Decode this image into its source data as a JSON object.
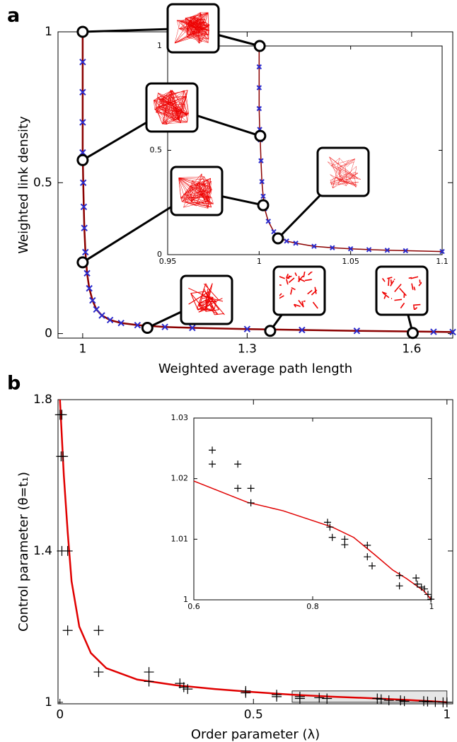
{
  "chart_data": [
    {
      "type": "line",
      "panel_label": "a",
      "xlabel": "Weighted average path length",
      "ylabel": "Weighted link density",
      "xlim": [
        0.955,
        1.675
      ],
      "ylim": [
        -0.015,
        1.0
      ],
      "xticks": [
        1,
        1.3,
        1.6
      ],
      "yticks": [
        0,
        0.5,
        1
      ],
      "series": [
        {
          "color": "#8b0000",
          "marker": "x",
          "marker_color": "#2a2acc",
          "x": [
            1,
            1,
            1,
            1,
            1,
            1.001,
            1.002,
            1.003,
            1.005,
            1.008,
            1.012,
            1.018,
            1.025,
            1.035,
            1.05,
            1.07,
            1.1,
            1.15,
            1.2,
            1.3,
            1.4,
            1.5,
            1.6,
            1.64,
            1.675
          ],
          "values": [
            1,
            0.9,
            0.8,
            0.7,
            0.6,
            0.5,
            0.42,
            0.35,
            0.27,
            0.2,
            0.15,
            0.11,
            0.08,
            0.06,
            0.045,
            0.035,
            0.028,
            0.022,
            0.019,
            0.015,
            0.012,
            0.009,
            0.007,
            0.006,
            0.005
          ]
        },
        {
          "color": "#000000",
          "marker": "circle",
          "line": false,
          "x": [
            1,
            1,
            1,
            1.118,
            1.342,
            1.602
          ],
          "values": [
            1,
            0.575,
            0.236,
            0.019,
            0.009,
            0.002
          ]
        }
      ]
    },
    {
      "type": "line",
      "xlim": [
        0.95,
        1.1
      ],
      "ylim": [
        0,
        1
      ],
      "xticks": [
        0.95,
        1,
        1.05,
        1.1
      ],
      "yticks": [
        0,
        0.5,
        1
      ],
      "series": [
        {
          "color": "#8b0000",
          "marker": "x",
          "marker_color": "#2a2acc",
          "x": [
            1,
            1,
            1,
            1,
            1.0003,
            1.0006,
            1.001,
            1.0015,
            1.0022,
            1.003,
            1.005,
            1.008,
            1.0103,
            1.015,
            1.02,
            1.03,
            1.04,
            1.05,
            1.06,
            1.07,
            1.08,
            1.1
          ],
          "values": [
            1,
            0.9,
            0.8,
            0.7,
            0.6,
            0.55,
            0.45,
            0.35,
            0.28,
            0.22,
            0.16,
            0.11,
            0.085,
            0.065,
            0.055,
            0.04,
            0.033,
            0.028,
            0.024,
            0.021,
            0.019,
            0.015
          ]
        },
        {
          "color": "#000000",
          "marker": "circle",
          "line": false,
          "x": [
            1.0003,
            1.0006,
            1.0022,
            1.0103
          ],
          "values": [
            1.0,
            0.569,
            0.237,
            0.078
          ]
        }
      ]
    },
    {
      "type": "line",
      "panel_label": "b",
      "xlabel": "Order parameter (λ)",
      "ylabel": "Control parameter (θ=t₁)",
      "xlim": [
        -0.005,
        1.015
      ],
      "ylim": [
        0.996,
        1.8
      ],
      "xticks": [
        0,
        0.5,
        1
      ],
      "yticks": [
        1,
        1.4,
        1.8
      ],
      "series": [
        {
          "color": "#e00000",
          "x": [
            0,
            0.005,
            0.01,
            0.02,
            0.03,
            0.05,
            0.08,
            0.12,
            0.2,
            0.3,
            0.4,
            0.5,
            0.6,
            0.7,
            0.8,
            0.9,
            0.97,
            1.0
          ],
          "values": [
            1.8,
            1.7,
            1.6,
            1.45,
            1.32,
            1.2,
            1.13,
            1.09,
            1.06,
            1.045,
            1.035,
            1.027,
            1.02,
            1.015,
            1.011,
            1.006,
            1.002,
            1.0
          ]
        },
        {
          "color": "#000000",
          "marker": "+",
          "line": false,
          "x": [
            0.0,
            0.005,
            0.003,
            0.008,
            0.005,
            0.02,
            0.02,
            0.1,
            0.1,
            0.23,
            0.23,
            0.31,
            0.32,
            0.33,
            0.48,
            0.48,
            0.56,
            0.56,
            0.62,
            0.62,
            0.67,
            0.69,
            0.82,
            0.83,
            0.85,
            0.88,
            0.89,
            0.94,
            0.95,
            0.97,
            0.99,
            1.0
          ],
          "values": [
            1.76,
            1.76,
            1.65,
            1.65,
            1.4,
            1.4,
            1.19,
            1.19,
            1.08,
            1.08,
            1.055,
            1.05,
            1.04,
            1.035,
            1.03,
            1.025,
            1.02,
            1.015,
            1.015,
            1.01,
            1.012,
            1.01,
            1.01,
            1.008,
            1.005,
            1.005,
            1.003,
            1.003,
            1.002,
            1.001,
            1.0,
            1.0
          ]
        }
      ]
    },
    {
      "type": "line",
      "xlim": [
        0.6,
        1
      ],
      "ylim": [
        1,
        1.03
      ],
      "xticks": [
        0.6,
        0.8,
        1
      ],
      "yticks": [
        1,
        1.01,
        1.02,
        1.03
      ],
      "series": [
        {
          "color": "#e00000",
          "x": [
            0.6,
            0.69,
            0.75,
            0.833,
            0.869,
            0.905,
            0.935,
            0.958,
            0.988,
            1.0
          ],
          "values": [
            1.0196,
            1.0161,
            1.0147,
            1.012,
            1.0103,
            1.0074,
            1.0049,
            1.0035,
            1.0014,
            1.0
          ]
        },
        {
          "color": "#000000",
          "marker": "+",
          "line": false,
          "x": [
            0.631,
            0.631,
            0.674,
            0.674,
            0.696,
            0.696,
            0.825,
            0.829,
            0.833,
            0.854,
            0.854,
            0.892,
            0.892,
            0.9,
            0.946,
            0.946,
            0.974,
            0.976,
            0.983,
            0.988,
            0.994,
            0.999
          ],
          "values": [
            1.0247,
            1.0224,
            1.0224,
            1.0184,
            1.0184,
            1.016,
            1.0128,
            1.012,
            1.0103,
            1.01,
            1.0091,
            1.009,
            1.0071,
            1.0056,
            1.0023,
            1.004,
            1.0036,
            1.0026,
            1.0021,
            1.0018,
            1.0009,
            1.0001
          ]
        }
      ]
    }
  ]
}
